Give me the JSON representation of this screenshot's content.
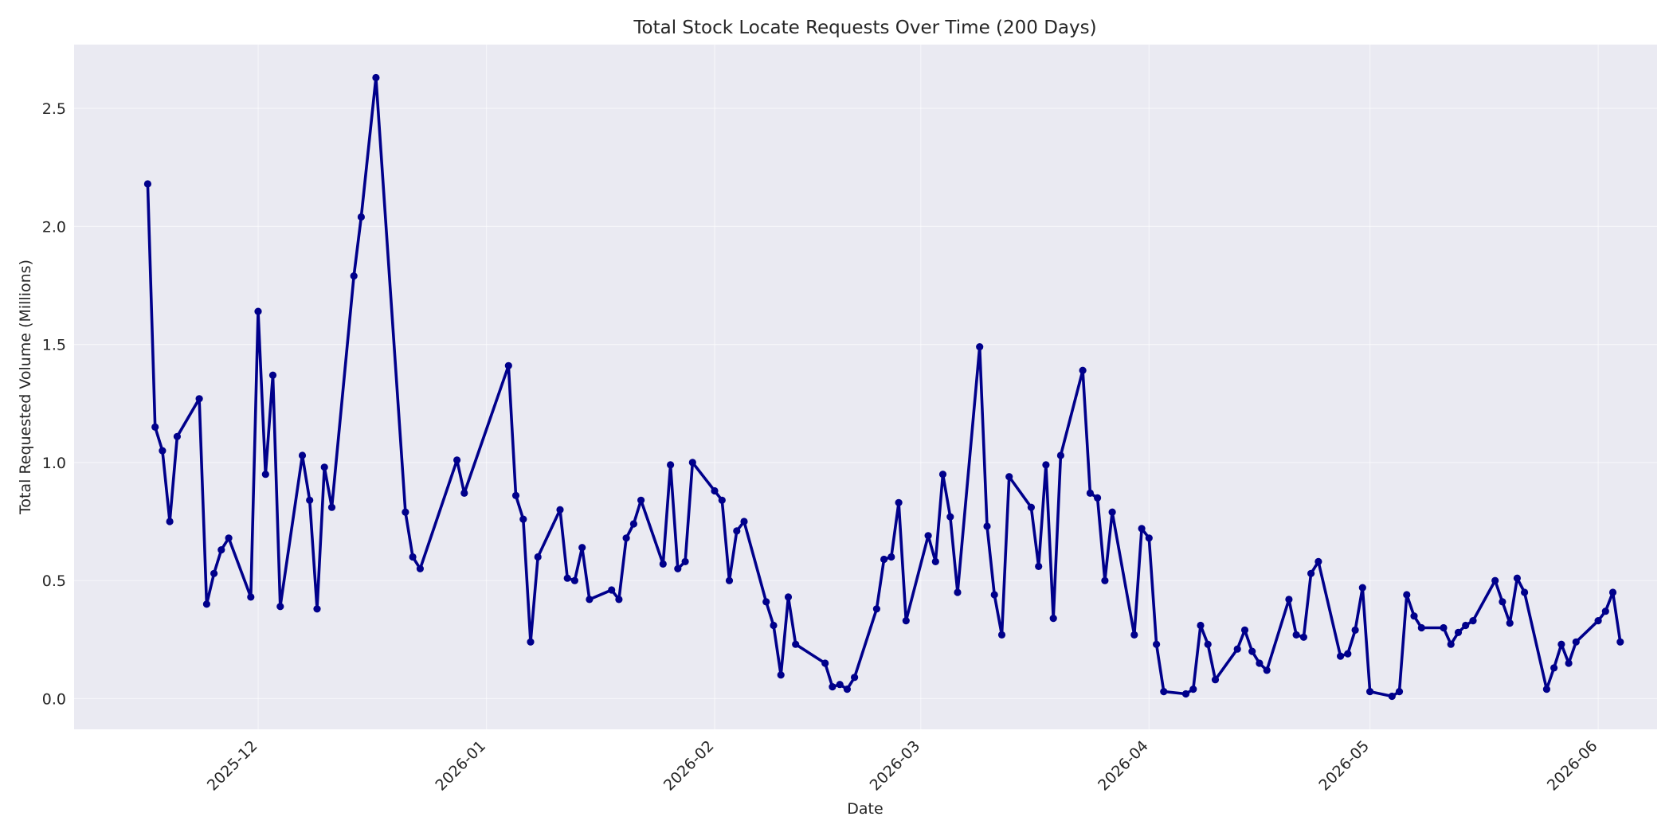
{
  "chart_data": {
    "type": "line",
    "title": "Total Stock Locate Requests Over Time (200 Days)",
    "xlabel": "Date",
    "ylabel": "Total Requested Volume (Millions)",
    "x_ticks": [
      "2025-12",
      "2026-01",
      "2026-02",
      "2026-03",
      "2026-04",
      "2026-05",
      "2026-06"
    ],
    "x_tick_dates": [
      "2025-12-01",
      "2026-01-01",
      "2026-02-01",
      "2026-03-01",
      "2026-04-01",
      "2026-05-01",
      "2026-06-01"
    ],
    "y_ticks": [
      "0.0",
      "0.5",
      "1.0",
      "1.5",
      "2.0",
      "2.5"
    ],
    "y_tick_values": [
      0.0,
      0.5,
      1.0,
      1.5,
      2.0,
      2.5
    ],
    "xlim": [
      "2025-11-06",
      "2026-06-09"
    ],
    "ylim": [
      -0.13,
      2.77
    ],
    "grid": true,
    "colors": {
      "series": "#00008b",
      "plot_background": "#eaeaf2",
      "grid": "#ffffff"
    },
    "series": [
      {
        "points": [
          [
            "2025-11-16",
            2.18
          ],
          [
            "2025-11-17",
            1.15
          ],
          [
            "2025-11-18",
            1.05
          ],
          [
            "2025-11-19",
            0.75
          ],
          [
            "2025-11-20",
            1.11
          ],
          [
            "2025-11-23",
            1.27
          ],
          [
            "2025-11-24",
            0.4
          ],
          [
            "2025-11-25",
            0.53
          ],
          [
            "2025-11-26",
            0.63
          ],
          [
            "2025-11-27",
            0.68
          ],
          [
            "2025-11-30",
            0.43
          ],
          [
            "2025-12-01",
            1.64
          ],
          [
            "2025-12-02",
            0.95
          ],
          [
            "2025-12-03",
            1.37
          ],
          [
            "2025-12-04",
            0.39
          ],
          [
            "2025-12-07",
            1.03
          ],
          [
            "2025-12-08",
            0.84
          ],
          [
            "2025-12-09",
            0.38
          ],
          [
            "2025-12-10",
            0.98
          ],
          [
            "2025-12-11",
            0.81
          ],
          [
            "2025-12-14",
            1.79
          ],
          [
            "2025-12-15",
            2.04
          ],
          [
            "2025-12-17",
            2.63
          ],
          [
            "2025-12-21",
            0.79
          ],
          [
            "2025-12-22",
            0.6
          ],
          [
            "2025-12-23",
            0.55
          ],
          [
            "2025-12-28",
            1.01
          ],
          [
            "2025-12-29",
            0.87
          ],
          [
            "2026-01-04",
            1.41
          ],
          [
            "2026-01-05",
            0.86
          ],
          [
            "2026-01-06",
            0.76
          ],
          [
            "2026-01-07",
            0.24
          ],
          [
            "2026-01-08",
            0.6
          ],
          [
            "2026-01-11",
            0.8
          ],
          [
            "2026-01-12",
            0.51
          ],
          [
            "2026-01-13",
            0.5
          ],
          [
            "2026-01-14",
            0.64
          ],
          [
            "2026-01-15",
            0.42
          ],
          [
            "2026-01-18",
            0.46
          ],
          [
            "2026-01-19",
            0.42
          ],
          [
            "2026-01-20",
            0.68
          ],
          [
            "2026-01-21",
            0.74
          ],
          [
            "2026-01-22",
            0.84
          ],
          [
            "2026-01-25",
            0.57
          ],
          [
            "2026-01-26",
            0.99
          ],
          [
            "2026-01-27",
            0.55
          ],
          [
            "2026-01-28",
            0.58
          ],
          [
            "2026-01-29",
            1.0
          ],
          [
            "2026-02-01",
            0.88
          ],
          [
            "2026-02-02",
            0.84
          ],
          [
            "2026-02-03",
            0.5
          ],
          [
            "2026-02-04",
            0.71
          ],
          [
            "2026-02-05",
            0.75
          ],
          [
            "2026-02-08",
            0.41
          ],
          [
            "2026-02-09",
            0.31
          ],
          [
            "2026-02-10",
            0.1
          ],
          [
            "2026-02-11",
            0.43
          ],
          [
            "2026-02-12",
            0.23
          ],
          [
            "2026-02-16",
            0.15
          ],
          [
            "2026-02-17",
            0.05
          ],
          [
            "2026-02-18",
            0.06
          ],
          [
            "2026-02-19",
            0.04
          ],
          [
            "2026-02-20",
            0.09
          ],
          [
            "2026-02-23",
            0.38
          ],
          [
            "2026-02-24",
            0.59
          ],
          [
            "2026-02-25",
            0.6
          ],
          [
            "2026-02-26",
            0.83
          ],
          [
            "2026-02-27",
            0.33
          ],
          [
            "2026-03-02",
            0.69
          ],
          [
            "2026-03-03",
            0.58
          ],
          [
            "2026-03-04",
            0.95
          ],
          [
            "2026-03-05",
            0.77
          ],
          [
            "2026-03-06",
            0.45
          ],
          [
            "2026-03-09",
            1.49
          ],
          [
            "2026-03-10",
            0.73
          ],
          [
            "2026-03-11",
            0.44
          ],
          [
            "2026-03-12",
            0.27
          ],
          [
            "2026-03-13",
            0.94
          ],
          [
            "2026-03-16",
            0.81
          ],
          [
            "2026-03-17",
            0.56
          ],
          [
            "2026-03-18",
            0.99
          ],
          [
            "2026-03-19",
            0.34
          ],
          [
            "2026-03-20",
            1.03
          ],
          [
            "2026-03-23",
            1.39
          ],
          [
            "2026-03-24",
            0.87
          ],
          [
            "2026-03-25",
            0.85
          ],
          [
            "2026-03-26",
            0.5
          ],
          [
            "2026-03-27",
            0.79
          ],
          [
            "2026-03-30",
            0.27
          ],
          [
            "2026-03-31",
            0.72
          ],
          [
            "2026-04-01",
            0.68
          ],
          [
            "2026-04-02",
            0.23
          ],
          [
            "2026-04-03",
            0.03
          ],
          [
            "2026-04-06",
            0.02
          ],
          [
            "2026-04-07",
            0.04
          ],
          [
            "2026-04-08",
            0.31
          ],
          [
            "2026-04-09",
            0.23
          ],
          [
            "2026-04-10",
            0.08
          ],
          [
            "2026-04-13",
            0.21
          ],
          [
            "2026-04-14",
            0.29
          ],
          [
            "2026-04-15",
            0.2
          ],
          [
            "2026-04-16",
            0.15
          ],
          [
            "2026-04-17",
            0.12
          ],
          [
            "2026-04-20",
            0.42
          ],
          [
            "2026-04-21",
            0.27
          ],
          [
            "2026-04-22",
            0.26
          ],
          [
            "2026-04-23",
            0.53
          ],
          [
            "2026-04-24",
            0.58
          ],
          [
            "2026-04-27",
            0.18
          ],
          [
            "2026-04-28",
            0.19
          ],
          [
            "2026-04-29",
            0.29
          ],
          [
            "2026-04-30",
            0.47
          ],
          [
            "2026-05-01",
            0.03
          ],
          [
            "2026-05-04",
            0.01
          ],
          [
            "2026-05-05",
            0.03
          ],
          [
            "2026-05-06",
            0.44
          ],
          [
            "2026-05-07",
            0.35
          ],
          [
            "2026-05-08",
            0.3
          ],
          [
            "2026-05-11",
            0.3
          ],
          [
            "2026-05-12",
            0.23
          ],
          [
            "2026-05-13",
            0.28
          ],
          [
            "2026-05-14",
            0.31
          ],
          [
            "2026-05-15",
            0.33
          ],
          [
            "2026-05-18",
            0.5
          ],
          [
            "2026-05-19",
            0.41
          ],
          [
            "2026-05-20",
            0.32
          ],
          [
            "2026-05-21",
            0.51
          ],
          [
            "2026-05-22",
            0.45
          ],
          [
            "2026-05-25",
            0.04
          ],
          [
            "2026-05-26",
            0.13
          ],
          [
            "2026-05-27",
            0.23
          ],
          [
            "2026-05-28",
            0.15
          ],
          [
            "2026-05-29",
            0.24
          ],
          [
            "2026-06-01",
            0.33
          ],
          [
            "2026-06-02",
            0.37
          ],
          [
            "2026-06-03",
            0.45
          ],
          [
            "2026-06-04",
            0.24
          ]
        ]
      }
    ]
  }
}
